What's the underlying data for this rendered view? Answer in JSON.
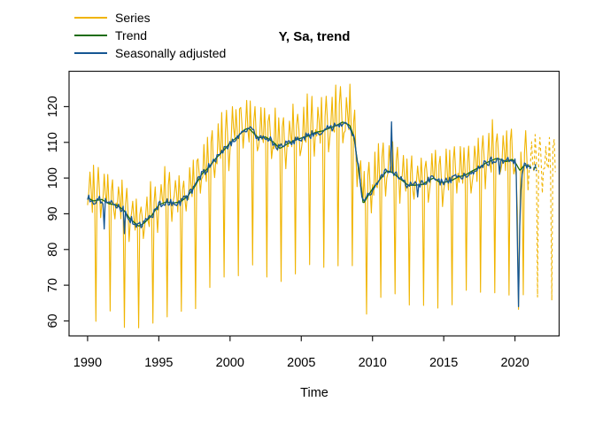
{
  "title": "Y, Sa, trend",
  "chart_data": {
    "type": "line",
    "title": "Y, Sa, trend",
    "xlabel": "Time",
    "ylabel": "",
    "grid": false,
    "legend_position": "top-left",
    "x_ticks": [
      1990,
      1995,
      2000,
      2005,
      2010,
      2015,
      2020
    ],
    "y_ticks": [
      60,
      70,
      80,
      90,
      100,
      110,
      120
    ],
    "xlim": [
      1988.7,
      2023.1
    ],
    "ylim": [
      55.8,
      129.9
    ],
    "frequency_per_year": 12,
    "observed_range": [
      1990.0,
      2020.917
    ],
    "series_forecast_end": 2022.83,
    "trend_forecast_end": 2021.5,
    "sa_forecast_end": 2021.5,
    "forecast_style": "dashed",
    "series_meta": [
      {
        "name": "Series",
        "color": "#F0B400",
        "width": 1.1
      },
      {
        "name": "Trend",
        "color": "#1E6C0B",
        "width": 1.3
      },
      {
        "name": "Seasonally adjusted",
        "color": "#155692",
        "width": 1.3
      }
    ],
    "trend_knots": [
      [
        1990.0,
        94.5
      ],
      [
        1990.4,
        93.6
      ],
      [
        1991.0,
        94.0
      ],
      [
        1991.5,
        92.8
      ],
      [
        1992.0,
        92.5
      ],
      [
        1992.5,
        91.2
      ],
      [
        1993.0,
        88.5
      ],
      [
        1993.6,
        86.5
      ],
      [
        1994.0,
        87.5
      ],
      [
        1994.5,
        89.5
      ],
      [
        1995.0,
        92.5
      ],
      [
        1995.5,
        93.3
      ],
      [
        1996.0,
        93.0
      ],
      [
        1996.5,
        93.3
      ],
      [
        1997.0,
        94.8
      ],
      [
        1997.5,
        97.5
      ],
      [
        1998.0,
        101.0
      ],
      [
        1998.5,
        103.0
      ],
      [
        1999.0,
        105.5
      ],
      [
        1999.5,
        107.5
      ],
      [
        2000.0,
        109.8
      ],
      [
        2000.5,
        111.5
      ],
      [
        2001.0,
        113.5
      ],
      [
        2001.3,
        114.0
      ],
      [
        2001.8,
        112.0
      ],
      [
        2002.0,
        111.3
      ],
      [
        2002.5,
        111.5
      ],
      [
        2003.0,
        110.2
      ],
      [
        2003.5,
        108.3
      ],
      [
        2004.0,
        109.5
      ],
      [
        2004.5,
        110.5
      ],
      [
        2005.0,
        111.2
      ],
      [
        2005.5,
        111.8
      ],
      [
        2006.0,
        112.8
      ],
      [
        2006.5,
        113.2
      ],
      [
        2007.0,
        114.0
      ],
      [
        2007.5,
        114.8
      ],
      [
        2007.9,
        115.7
      ],
      [
        2008.4,
        114.8
      ],
      [
        2008.7,
        111.5
      ],
      [
        2009.0,
        103.0
      ],
      [
        2009.35,
        92.7
      ],
      [
        2009.6,
        94.5
      ],
      [
        2010.0,
        97.0
      ],
      [
        2010.5,
        99.5
      ],
      [
        2011.0,
        102.0
      ],
      [
        2011.3,
        101.8
      ],
      [
        2012.0,
        99.6
      ],
      [
        2012.5,
        98.0
      ],
      [
        2013.0,
        98.0
      ],
      [
        2013.5,
        98.2
      ],
      [
        2014.0,
        99.5
      ],
      [
        2014.3,
        100.0
      ],
      [
        2014.7,
        98.8
      ],
      [
        2015.0,
        98.8
      ],
      [
        2015.5,
        99.2
      ],
      [
        2016.0,
        100.3
      ],
      [
        2016.5,
        100.8
      ],
      [
        2017.0,
        102.0
      ],
      [
        2017.5,
        103.0
      ],
      [
        2018.0,
        104.3
      ],
      [
        2018.7,
        105.5
      ],
      [
        2019.0,
        105.2
      ],
      [
        2019.4,
        104.6
      ],
      [
        2019.8,
        105.3
      ],
      [
        2020.0,
        104.5
      ],
      [
        2020.35,
        102.1
      ],
      [
        2020.65,
        103.6
      ],
      [
        2021.0,
        103.3
      ],
      [
        2021.5,
        102.8
      ]
    ],
    "seasonal_factors": [
      0.99,
      1.0,
      1.075,
      1.01,
      0.985,
      1.09,
      1.0,
      0.66,
      1.045,
      1.075,
      1.005,
      0.945
    ],
    "common_outliers": [
      [
        2020.0833,
        -2
      ],
      [
        2020.1667,
        -20
      ],
      [
        2020.25,
        -38.5
      ],
      [
        2020.3333,
        -15
      ],
      [
        2020.4167,
        -6
      ],
      [
        2020.5,
        -2.5
      ]
    ],
    "sa_outliers": [
      [
        1991.1667,
        -7
      ],
      [
        1992.5833,
        -7
      ],
      [
        2011.3333,
        13.2
      ],
      [
        2013.1667,
        -3
      ],
      [
        2018.9167,
        -3.5
      ]
    ],
    "noise": {
      "series": 2.2,
      "sa": 1.1,
      "seed": 7
    },
    "value_clamp": [
      57.5,
      128.2
    ]
  },
  "legend": {
    "items": [
      {
        "label": "Series",
        "color": "#F0B400"
      },
      {
        "label": "Trend",
        "color": "#1E6C0B"
      },
      {
        "label": "Seasonally adjusted",
        "color": "#155692"
      }
    ]
  },
  "axis": {
    "color": "#1a1a1a",
    "tick_label_color": "#000000"
  }
}
